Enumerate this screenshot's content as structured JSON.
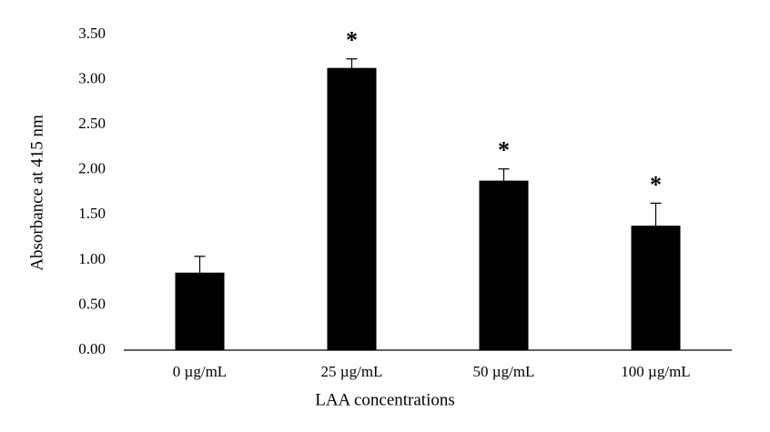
{
  "chart_data": {
    "type": "bar",
    "ylabel": "Absorbance at 415 nm",
    "xlabel": "LAA concentrations",
    "categories": [
      "0 µg/mL",
      "25 µg/mL",
      "50 µg/mL",
      "100 µg/mL"
    ],
    "values": [
      0.86,
      3.13,
      1.88,
      1.38
    ],
    "errors": [
      0.18,
      0.1,
      0.13,
      0.25
    ],
    "significance": [
      null,
      "*",
      "*",
      "*"
    ],
    "color": "#000000",
    "ylim": [
      0,
      3.5
    ],
    "yticks": [
      {
        "value": 0,
        "label": "0.00"
      },
      {
        "value": 0.5,
        "label": "0.50"
      },
      {
        "value": 1,
        "label": "1.00"
      },
      {
        "value": 1.5,
        "label": "1.50"
      },
      {
        "value": 2,
        "label": "2.00"
      },
      {
        "value": 2.5,
        "label": "2.50"
      },
      {
        "value": 3,
        "label": "3.00"
      },
      {
        "value": 3.5,
        "label": "3.50"
      }
    ],
    "grid": false
  }
}
